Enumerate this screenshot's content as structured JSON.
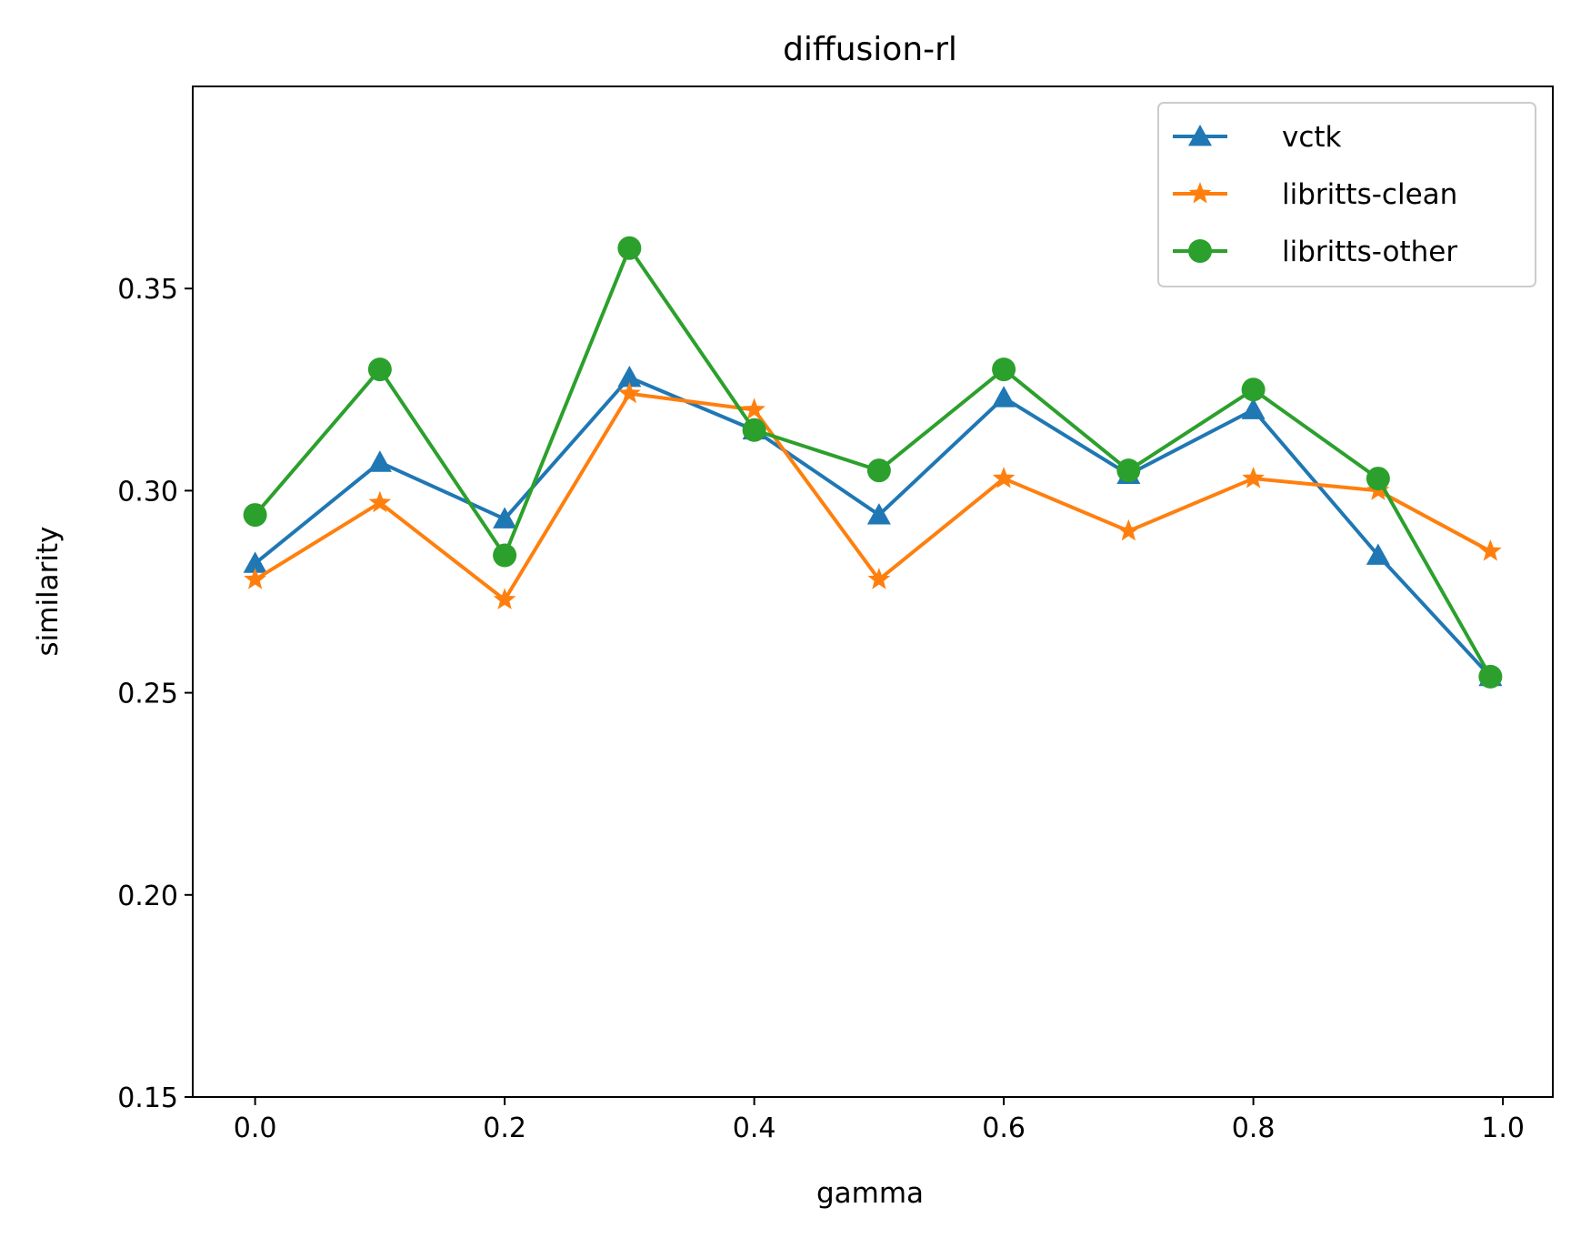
{
  "chart_data": {
    "type": "line",
    "title": "diffusion-rl",
    "xlabel": "gamma",
    "ylabel": "similarity",
    "x": [
      0.0,
      0.1,
      0.2,
      0.3,
      0.4,
      0.5,
      0.6,
      0.7,
      0.8,
      0.9,
      0.99
    ],
    "xlim": [
      -0.05,
      1.04
    ],
    "ylim": [
      0.15,
      0.4
    ],
    "xticks": [
      0.0,
      0.2,
      0.4,
      0.6,
      0.8,
      1.0
    ],
    "xtick_labels": [
      "0.0",
      "0.2",
      "0.4",
      "0.6",
      "0.8",
      "1.0"
    ],
    "yticks": [
      0.15,
      0.2,
      0.25,
      0.3,
      0.35
    ],
    "ytick_labels": [
      "0.15",
      "0.20",
      "0.25",
      "0.30",
      "0.35"
    ],
    "grid": false,
    "legend_position": "top-right",
    "series": [
      {
        "name": "vctk",
        "color": "#1f77b4",
        "marker": "triangle",
        "values": [
          0.282,
          0.307,
          0.293,
          0.328,
          0.315,
          0.294,
          0.323,
          0.304,
          0.32,
          0.284,
          0.254
        ]
      },
      {
        "name": "libritts-clean",
        "color": "#ff7f0e",
        "marker": "star",
        "values": [
          0.278,
          0.297,
          0.273,
          0.324,
          0.32,
          0.278,
          0.303,
          0.29,
          0.303,
          0.3,
          0.285
        ]
      },
      {
        "name": "libritts-other",
        "color": "#2ca02c",
        "marker": "circle",
        "values": [
          0.294,
          0.33,
          0.284,
          0.36,
          0.315,
          0.305,
          0.33,
          0.305,
          0.325,
          0.303,
          0.254
        ]
      }
    ]
  }
}
